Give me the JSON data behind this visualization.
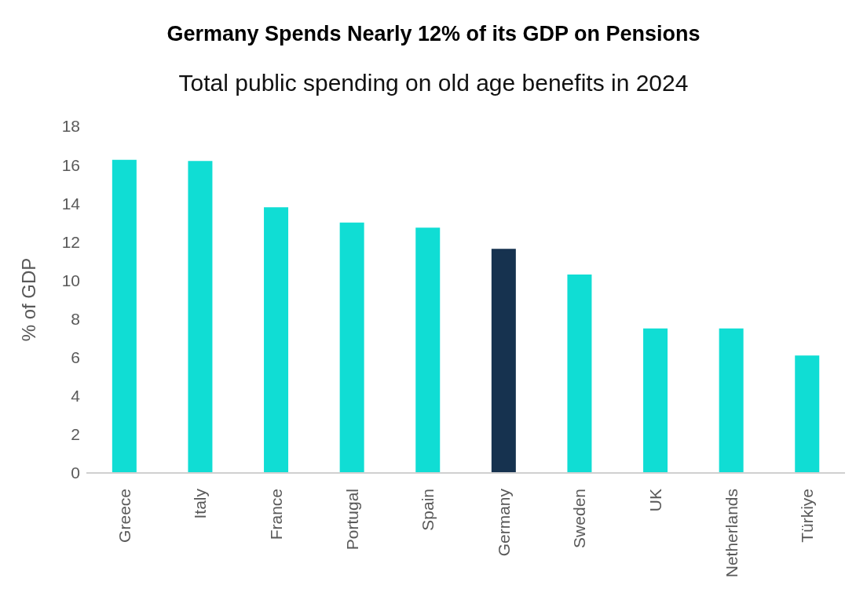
{
  "chart_data": {
    "type": "bar",
    "title": "Germany Spends Nearly 12% of its GDP on Pensions",
    "subtitle": "Total public spending on old age benefits in 2024",
    "ylabel": "% of GDP",
    "categories": [
      "Greece",
      "Italy",
      "France",
      "Portugal",
      "Spain",
      "Germany",
      "Sweden",
      "UK",
      "Netherlands",
      "Türkiye"
    ],
    "values": [
      16.26,
      16.2,
      13.8,
      13.0,
      12.74,
      11.64,
      10.3,
      7.5,
      7.5,
      6.1
    ],
    "colors": [
      "#10ddd4",
      "#10ddd4",
      "#10ddd4",
      "#10ddd4",
      "#10ddd4",
      "#16324f",
      "#10ddd4",
      "#10ddd4",
      "#10ddd4",
      "#10ddd4"
    ],
    "ylim": [
      0,
      18
    ],
    "yticks": [
      0,
      2,
      4,
      6,
      8,
      10,
      12,
      14,
      16,
      18
    ],
    "grid": false,
    "legend": false
  }
}
